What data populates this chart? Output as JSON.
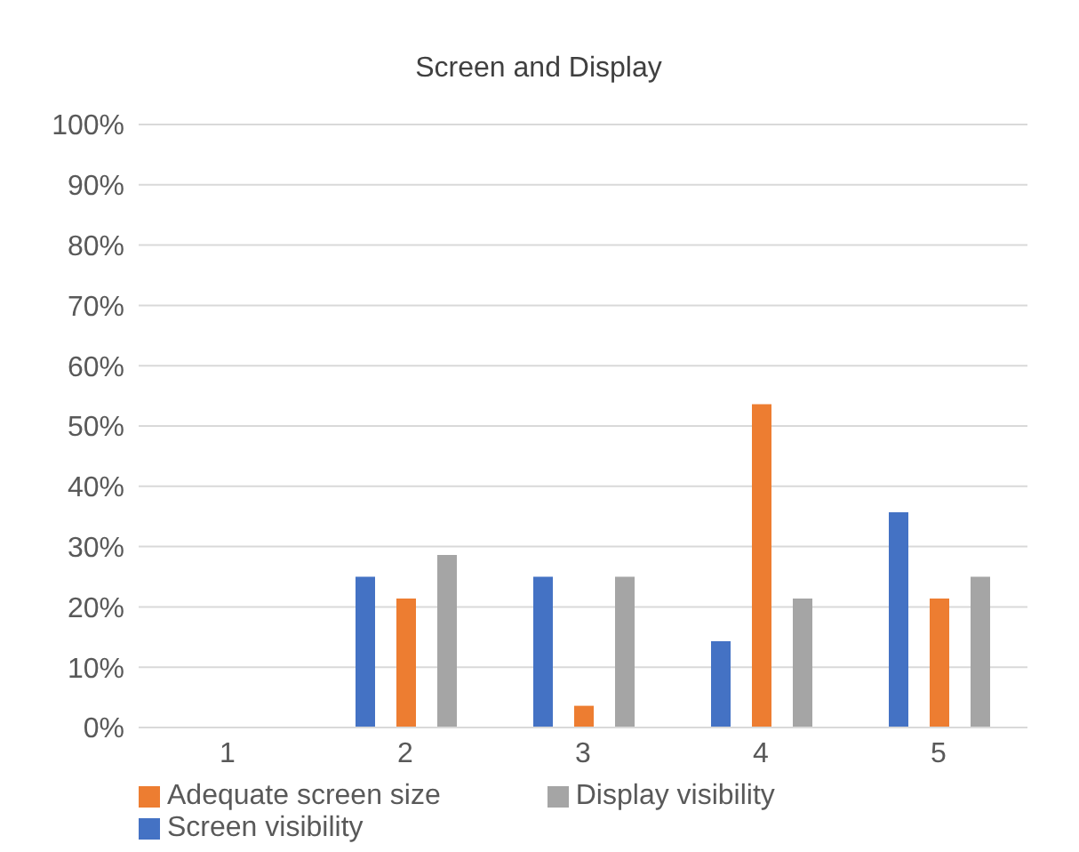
{
  "chart_data": {
    "type": "bar",
    "title": "Screen and Display",
    "categories": [
      "1",
      "2",
      "3",
      "4",
      "5"
    ],
    "series": [
      {
        "name": "Screen visibility",
        "color": "#4472c4",
        "values": [
          0,
          25,
          25,
          14.3,
          35.7
        ]
      },
      {
        "name": "Adequate screen size",
        "color": "#ed7d31",
        "values": [
          0,
          21.4,
          3.6,
          53.6,
          21.4
        ]
      },
      {
        "name": "Display visibility",
        "color": "#a5a5a5",
        "values": [
          0,
          28.6,
          25,
          21.4,
          25
        ]
      }
    ],
    "ylim": [
      0,
      100
    ],
    "yticks": [
      {
        "value": 0,
        "label": "0%"
      },
      {
        "value": 10,
        "label": "10%"
      },
      {
        "value": 20,
        "label": "20%"
      },
      {
        "value": 30,
        "label": "30%"
      },
      {
        "value": 40,
        "label": "40%"
      },
      {
        "value": 50,
        "label": "50%"
      },
      {
        "value": 60,
        "label": "60%"
      },
      {
        "value": 70,
        "label": "70%"
      },
      {
        "value": 80,
        "label": "80%"
      },
      {
        "value": 90,
        "label": "90%"
      },
      {
        "value": 100,
        "label": "100%"
      }
    ],
    "grid": "y",
    "legend": "bottom"
  }
}
